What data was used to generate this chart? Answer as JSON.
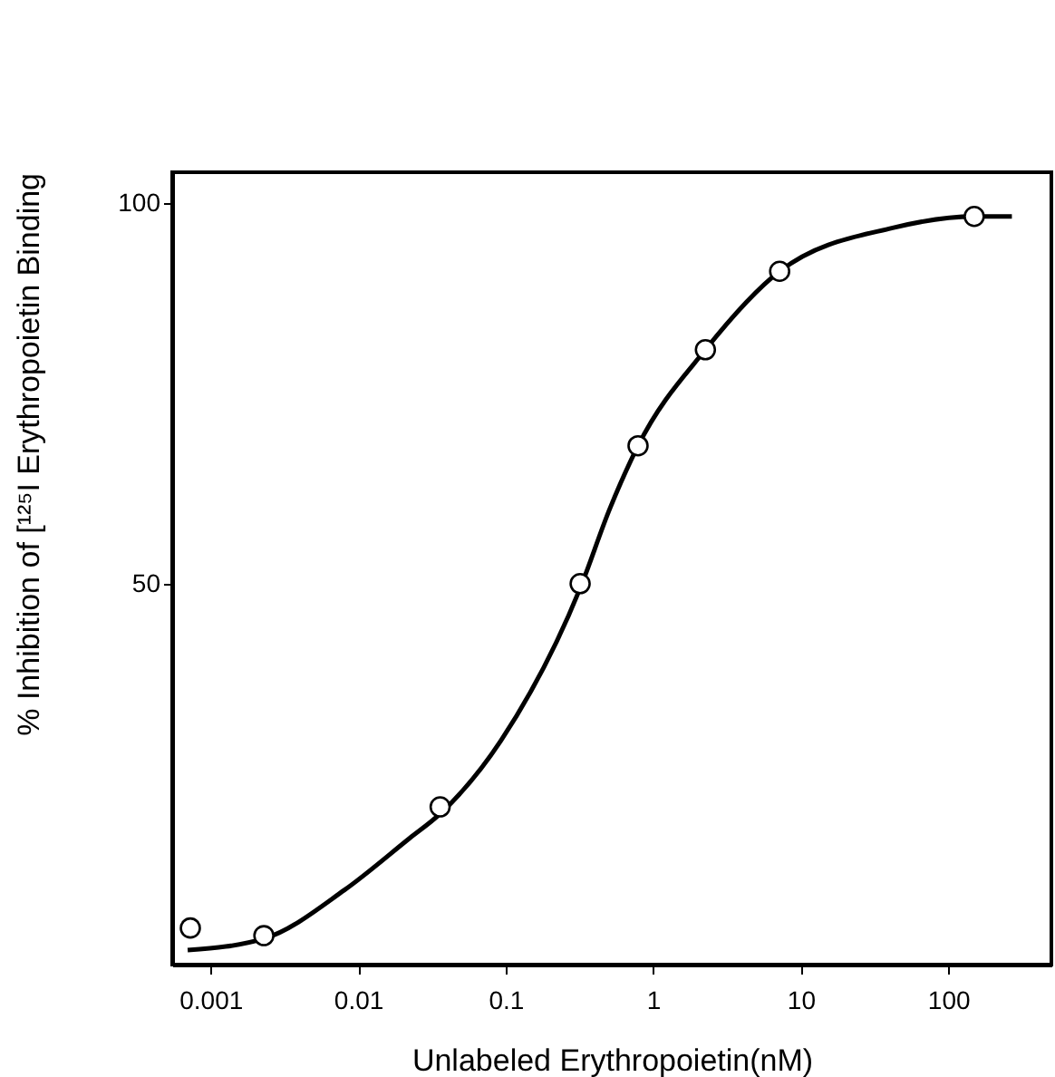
{
  "chart_data": {
    "type": "scatter",
    "xlabel": "Unlabeled Erythropoietin(nM)",
    "ylabel": "% Inhibition of [¹²⁵I Erythropoietin Binding",
    "log": "x",
    "grid": false,
    "xlim": [
      0.00055,
      500
    ],
    "xticks": [
      0.001,
      0.01,
      0.1,
      1,
      10,
      100
    ],
    "ylim": [
      0,
      104
    ],
    "yticks": [
      50,
      100
    ],
    "series": [
      {
        "type": "line",
        "color": "#000000",
        "line_style": "solid",
        "x": [
          0.0007,
          0.0023,
          0.0081,
          0.0224,
          0.036,
          0.093,
          0.32,
          0.51,
          0.79,
          2.26,
          7.2,
          42,
          150,
          270
        ],
        "values": [
          1.9,
          3.4,
          9.8,
          16.6,
          19.8,
          29.4,
          49.4,
          59.9,
          68.1,
          80.7,
          91,
          96.7,
          98.2,
          98.2
        ]
      },
      {
        "color": "#000000",
        "marker": "circle",
        "x": [
          0.00073,
          0.0023,
          0.036,
          0.32,
          0.79,
          2.26,
          7.2,
          150
        ],
        "values": [
          4.8,
          3.8,
          20.7,
          50,
          68.1,
          80.7,
          91,
          98.2
        ]
      }
    ]
  }
}
